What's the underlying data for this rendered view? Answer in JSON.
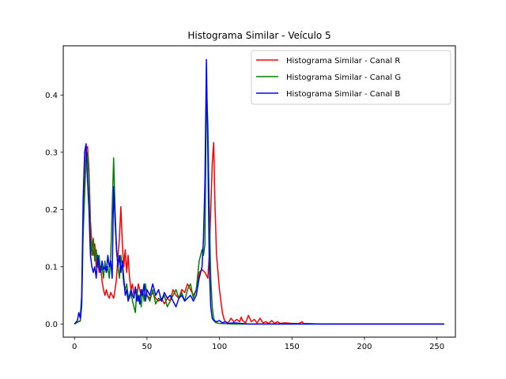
{
  "chart_data": {
    "type": "line",
    "title": "Histograma Similar - Veículo 5",
    "xlabel": "",
    "ylabel": "",
    "xlim": [
      -7.75,
      262.75
    ],
    "ylim": [
      -0.023,
      0.486
    ],
    "xticks": [
      0,
      50,
      100,
      150,
      200,
      250
    ],
    "yticks": [
      0.0,
      0.1,
      0.2,
      0.3,
      0.4
    ],
    "ytick_labels": [
      "0.0",
      "0.1",
      "0.2",
      "0.3",
      "0.4"
    ],
    "grid": false,
    "legend_position": "top-right",
    "series": [
      {
        "name": "Histograma Similar - Canal R",
        "color": "#ff0000",
        "points": [
          [
            0,
            0
          ],
          [
            2,
            0.003
          ],
          [
            4,
            0.006
          ],
          [
            5,
            0.04
          ],
          [
            6,
            0.18
          ],
          [
            8,
            0.305
          ],
          [
            9,
            0.31
          ],
          [
            10,
            0.27
          ],
          [
            11,
            0.18
          ],
          [
            12,
            0.14
          ],
          [
            13,
            0.12
          ],
          [
            14,
            0.14
          ],
          [
            15,
            0.1
          ],
          [
            16,
            0.11
          ],
          [
            17,
            0.09
          ],
          [
            18,
            0.1
          ],
          [
            19,
            0.075
          ],
          [
            20,
            0.06
          ],
          [
            21,
            0.05
          ],
          [
            22,
            0.06
          ],
          [
            23,
            0.05
          ],
          [
            24,
            0.045
          ],
          [
            25,
            0.055
          ],
          [
            26,
            0.05
          ],
          [
            27,
            0.045
          ],
          [
            28,
            0.06
          ],
          [
            29,
            0.08
          ],
          [
            30,
            0.12
          ],
          [
            31,
            0.15
          ],
          [
            32,
            0.205
          ],
          [
            33,
            0.14
          ],
          [
            34,
            0.1
          ],
          [
            35,
            0.13
          ],
          [
            36,
            0.09
          ],
          [
            37,
            0.12
          ],
          [
            38,
            0.08
          ],
          [
            39,
            0.06
          ],
          [
            40,
            0.07
          ],
          [
            41,
            0.05
          ],
          [
            42,
            0.06
          ],
          [
            43,
            0.045
          ],
          [
            44,
            0.07
          ],
          [
            45,
            0.06
          ],
          [
            46,
            0.05
          ],
          [
            47,
            0.055
          ],
          [
            48,
            0.045
          ],
          [
            50,
            0.05
          ],
          [
            52,
            0.045
          ],
          [
            54,
            0.055
          ],
          [
            56,
            0.045
          ],
          [
            58,
            0.04
          ],
          [
            60,
            0.045
          ],
          [
            62,
            0.035
          ],
          [
            64,
            0.045
          ],
          [
            66,
            0.04
          ],
          [
            68,
            0.06
          ],
          [
            70,
            0.05
          ],
          [
            72,
            0.045
          ],
          [
            74,
            0.06
          ],
          [
            76,
            0.055
          ],
          [
            78,
            0.07
          ],
          [
            80,
            0.06
          ],
          [
            82,
            0.05
          ],
          [
            84,
            0.06
          ],
          [
            86,
            0.09
          ],
          [
            88,
            0.095
          ],
          [
            90,
            0.09
          ],
          [
            91,
            0.085
          ],
          [
            92,
            0.08
          ],
          [
            93,
            0.12
          ],
          [
            94,
            0.2
          ],
          [
            95,
            0.28
          ],
          [
            96,
            0.317
          ],
          [
            97,
            0.2
          ],
          [
            98,
            0.12
          ],
          [
            99,
            0.09
          ],
          [
            100,
            0.06
          ],
          [
            101,
            0.04
          ],
          [
            102,
            0.02
          ],
          [
            103,
            0.01
          ],
          [
            104,
            0.004
          ],
          [
            106,
            0.002
          ],
          [
            108,
            0.01
          ],
          [
            110,
            0.004
          ],
          [
            112,
            0.008
          ],
          [
            114,
            0.004
          ],
          [
            115,
            0.012
          ],
          [
            116,
            0.006
          ],
          [
            118,
            0.002
          ],
          [
            120,
            0.015
          ],
          [
            122,
            0.004
          ],
          [
            124,
            0.008
          ],
          [
            126,
            0.002
          ],
          [
            128,
            0.01
          ],
          [
            130,
            0.002
          ],
          [
            132,
            0.004
          ],
          [
            134,
            0.001
          ],
          [
            136,
            0.006
          ],
          [
            138,
            0.001
          ],
          [
            140,
            0.004
          ],
          [
            142,
            0.001
          ],
          [
            145,
            0.002
          ],
          [
            150,
            0.001
          ],
          [
            155,
            0.001
          ],
          [
            157,
            0.004
          ],
          [
            158,
            0.001
          ],
          [
            170,
            0
          ],
          [
            200,
            0
          ],
          [
            255,
            0
          ]
        ]
      },
      {
        "name": "Histograma Similar - Canal G",
        "color": "#008000",
        "points": [
          [
            0,
            0
          ],
          [
            2,
            0.003
          ],
          [
            4,
            0.005
          ],
          [
            5,
            0.03
          ],
          [
            6,
            0.16
          ],
          [
            8,
            0.29
          ],
          [
            9,
            0.3
          ],
          [
            10,
            0.25
          ],
          [
            11,
            0.15
          ],
          [
            12,
            0.12
          ],
          [
            13,
            0.15
          ],
          [
            14,
            0.11
          ],
          [
            15,
            0.13
          ],
          [
            16,
            0.1
          ],
          [
            17,
            0.12
          ],
          [
            18,
            0.09
          ],
          [
            19,
            0.1
          ],
          [
            20,
            0.08
          ],
          [
            21,
            0.11
          ],
          [
            22,
            0.09
          ],
          [
            23,
            0.1
          ],
          [
            24,
            0.08
          ],
          [
            25,
            0.12
          ],
          [
            26,
            0.2
          ],
          [
            27,
            0.29
          ],
          [
            28,
            0.2
          ],
          [
            29,
            0.13
          ],
          [
            30,
            0.1
          ],
          [
            31,
            0.08
          ],
          [
            32,
            0.12
          ],
          [
            33,
            0.1
          ],
          [
            34,
            0.07
          ],
          [
            35,
            0.06
          ],
          [
            36,
            0.07
          ],
          [
            37,
            0.05
          ],
          [
            38,
            0.045
          ],
          [
            39,
            0.055
          ],
          [
            40,
            0.04
          ],
          [
            41,
            0.03
          ],
          [
            42,
            0.02
          ],
          [
            43,
            0.06
          ],
          [
            44,
            0.04
          ],
          [
            45,
            0.05
          ],
          [
            46,
            0.03
          ],
          [
            47,
            0.06
          ],
          [
            48,
            0.04
          ],
          [
            49,
            0.07
          ],
          [
            50,
            0.05
          ],
          [
            52,
            0.04
          ],
          [
            54,
            0.06
          ],
          [
            56,
            0.035
          ],
          [
            58,
            0.045
          ],
          [
            60,
            0.04
          ],
          [
            62,
            0.05
          ],
          [
            64,
            0.03
          ],
          [
            66,
            0.04
          ],
          [
            68,
            0.05
          ],
          [
            70,
            0.06
          ],
          [
            72,
            0.045
          ],
          [
            74,
            0.055
          ],
          [
            76,
            0.04
          ],
          [
            78,
            0.06
          ],
          [
            80,
            0.07
          ],
          [
            82,
            0.045
          ],
          [
            84,
            0.06
          ],
          [
            86,
            0.11
          ],
          [
            88,
            0.13
          ],
          [
            89,
            0.12
          ],
          [
            90,
            0.14
          ],
          [
            91,
            0.412
          ],
          [
            92,
            0.35
          ],
          [
            93,
            0.2
          ],
          [
            94,
            0.08
          ],
          [
            95,
            0.03
          ],
          [
            96,
            0.01
          ],
          [
            97,
            0.003
          ],
          [
            98,
            0.002
          ],
          [
            100,
            0.001
          ],
          [
            110,
            0
          ],
          [
            150,
            0
          ],
          [
            200,
            0
          ],
          [
            255,
            0
          ]
        ]
      },
      {
        "name": "Histograma Similar - Canal B",
        "color": "#0000ff",
        "points": [
          [
            0,
            0
          ],
          [
            2,
            0.006
          ],
          [
            3,
            0.02
          ],
          [
            4,
            0.01
          ],
          [
            5,
            0.05
          ],
          [
            6,
            0.22
          ],
          [
            7,
            0.3
          ],
          [
            8,
            0.315
          ],
          [
            9,
            0.25
          ],
          [
            10,
            0.2
          ],
          [
            11,
            0.12
          ],
          [
            12,
            0.1
          ],
          [
            13,
            0.09
          ],
          [
            14,
            0.1
          ],
          [
            15,
            0.08
          ],
          [
            16,
            0.12
          ],
          [
            17,
            0.1
          ],
          [
            18,
            0.09
          ],
          [
            19,
            0.11
          ],
          [
            20,
            0.095
          ],
          [
            21,
            0.1
          ],
          [
            22,
            0.09
          ],
          [
            23,
            0.12
          ],
          [
            24,
            0.1
          ],
          [
            25,
            0.11
          ],
          [
            26,
            0.08
          ],
          [
            27,
            0.24
          ],
          [
            28,
            0.18
          ],
          [
            29,
            0.13
          ],
          [
            30,
            0.1
          ],
          [
            31,
            0.12
          ],
          [
            32,
            0.09
          ],
          [
            33,
            0.11
          ],
          [
            34,
            0.08
          ],
          [
            35,
            0.05
          ],
          [
            36,
            0.06
          ],
          [
            37,
            0.04
          ],
          [
            38,
            0.05
          ],
          [
            39,
            0.06
          ],
          [
            40,
            0.05
          ],
          [
            41,
            0.045
          ],
          [
            42,
            0.065
          ],
          [
            43,
            0.04
          ],
          [
            44,
            0.05
          ],
          [
            45,
            0.035
          ],
          [
            46,
            0.06
          ],
          [
            47,
            0.05
          ],
          [
            48,
            0.07
          ],
          [
            49,
            0.04
          ],
          [
            50,
            0.06
          ],
          [
            52,
            0.05
          ],
          [
            54,
            0.07
          ],
          [
            56,
            0.05
          ],
          [
            58,
            0.06
          ],
          [
            60,
            0.04
          ],
          [
            62,
            0.055
          ],
          [
            64,
            0.045
          ],
          [
            66,
            0.05
          ],
          [
            68,
            0.04
          ],
          [
            70,
            0.03
          ],
          [
            72,
            0.045
          ],
          [
            74,
            0.05
          ],
          [
            76,
            0.04
          ],
          [
            78,
            0.045
          ],
          [
            80,
            0.05
          ],
          [
            82,
            0.04
          ],
          [
            84,
            0.05
          ],
          [
            86,
            0.08
          ],
          [
            88,
            0.1
          ],
          [
            89,
            0.15
          ],
          [
            90,
            0.25
          ],
          [
            91,
            0.462
          ],
          [
            92,
            0.3
          ],
          [
            93,
            0.1
          ],
          [
            94,
            0.03
          ],
          [
            95,
            0.01
          ],
          [
            96,
            0.006
          ],
          [
            98,
            0.004
          ],
          [
            100,
            0.006
          ],
          [
            102,
            0.002
          ],
          [
            104,
            0.004
          ],
          [
            106,
            0.001
          ],
          [
            110,
            0.002
          ],
          [
            115,
            0.001
          ],
          [
            120,
            0
          ],
          [
            150,
            0
          ],
          [
            200,
            0
          ],
          [
            255,
            0
          ]
        ]
      }
    ]
  }
}
